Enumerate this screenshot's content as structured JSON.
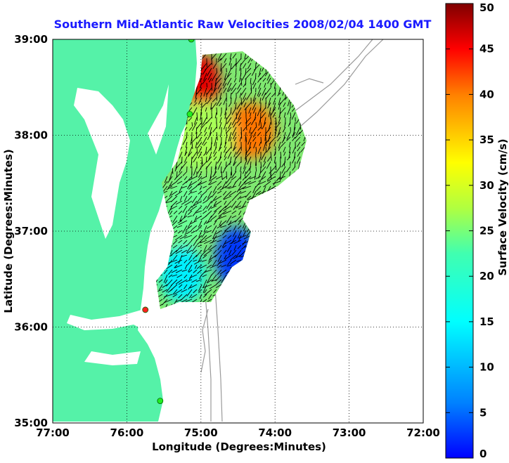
{
  "chart_data": {
    "type": "heatmap",
    "title": "Southern Mid-Atlantic Raw Velocities 2008/02/04 1400 GMT",
    "xlabel": "Longitude (Degrees:Minutes)",
    "ylabel": "Latitude (Degrees:Minutes)",
    "xlim": [
      -77,
      -72
    ],
    "ylim": [
      35,
      39
    ],
    "x_ticks": [
      {
        "value": -77,
        "label": "77:00"
      },
      {
        "value": -76,
        "label": "76:00"
      },
      {
        "value": -75,
        "label": "75:00"
      },
      {
        "value": -74,
        "label": "74:00"
      },
      {
        "value": -73,
        "label": "73:00"
      },
      {
        "value": -72,
        "label": "72:00"
      }
    ],
    "y_ticks": [
      {
        "value": 35,
        "label": "35:00"
      },
      {
        "value": 36,
        "label": "36:00"
      },
      {
        "value": 37,
        "label": "37:00"
      },
      {
        "value": 38,
        "label": "38:00"
      },
      {
        "value": 39,
        "label": "39:00"
      }
    ],
    "grid": true,
    "colorbar": {
      "label": "Surface Velocity (cm/s)",
      "range": [
        0,
        50
      ],
      "ticks": [
        "0",
        "5",
        "10",
        "15",
        "20",
        "25",
        "30",
        "35",
        "40",
        "45",
        "50"
      ],
      "colormap": "jet"
    },
    "colors": {
      "land": "#55f2a8",
      "background": "#ffffff",
      "bathymetry": "#9a9a9a",
      "vectors": "#000000",
      "title": "#1a1aff",
      "site_active": "#22ee22",
      "site_alert": "#ff2020"
    },
    "sites": [
      {
        "lon": -75.13,
        "lat": 39.0,
        "status": "active"
      },
      {
        "lon": -75.15,
        "lat": 38.22,
        "status": "active"
      },
      {
        "lon": -75.75,
        "lat": 36.18,
        "status": "alert"
      },
      {
        "lon": -75.55,
        "lat": 35.23,
        "status": "active"
      }
    ],
    "velocity_regions": [
      {
        "lon": [
          -75.2,
          -74.8
        ],
        "lat": [
          38.3,
          38.8
        ],
        "speed": 45
      },
      {
        "lon": [
          -74.6,
          -74.05
        ],
        "lat": [
          37.8,
          38.3
        ],
        "speed": 38
      },
      {
        "lon": [
          -75.4,
          -74.6
        ],
        "lat": [
          37.7,
          38.3
        ],
        "speed": 27
      },
      {
        "lon": [
          -75.45,
          -74.9
        ],
        "lat": [
          36.9,
          37.5
        ],
        "speed": 24
      },
      {
        "lon": [
          -74.75,
          -74.3
        ],
        "lat": [
          36.45,
          37.0
        ],
        "speed": 9
      },
      {
        "lon": [
          -75.5,
          -75.0
        ],
        "lat": [
          36.3,
          36.8
        ],
        "speed": 18
      }
    ]
  }
}
